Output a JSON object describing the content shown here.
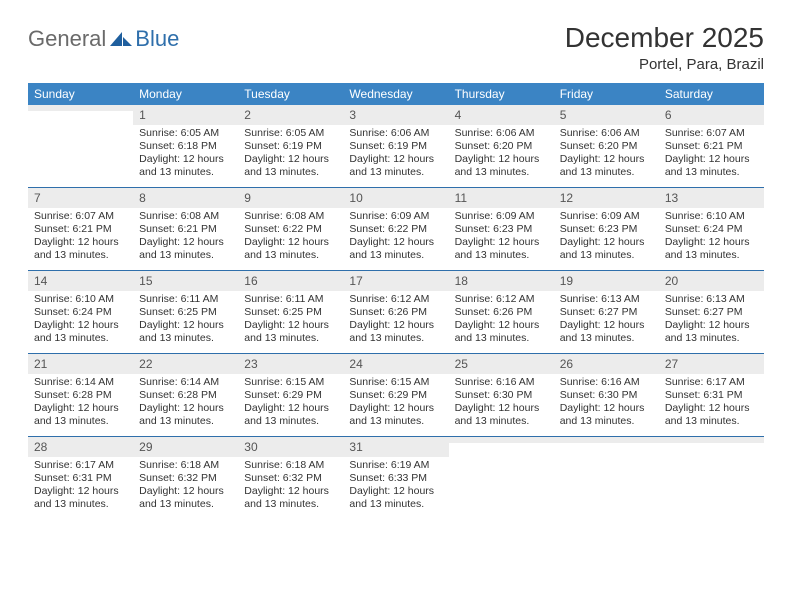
{
  "logo": {
    "part1": "General",
    "part2": "Blue"
  },
  "title": "December 2025",
  "location": "Portel, Para, Brazil",
  "colors": {
    "header_bg": "#3b84c4",
    "border": "#2f6fab",
    "daynum_bg": "#ececec",
    "text": "#333333",
    "logo_gray": "#6a6a6a",
    "logo_blue": "#2f6fab"
  },
  "dow": [
    "Sunday",
    "Monday",
    "Tuesday",
    "Wednesday",
    "Thursday",
    "Friday",
    "Saturday"
  ],
  "weeks": [
    [
      {
        "n": "",
        "sr": "",
        "ss": "",
        "dl": ""
      },
      {
        "n": "1",
        "sr": "Sunrise: 6:05 AM",
        "ss": "Sunset: 6:18 PM",
        "dl": "Daylight: 12 hours and 13 minutes."
      },
      {
        "n": "2",
        "sr": "Sunrise: 6:05 AM",
        "ss": "Sunset: 6:19 PM",
        "dl": "Daylight: 12 hours and 13 minutes."
      },
      {
        "n": "3",
        "sr": "Sunrise: 6:06 AM",
        "ss": "Sunset: 6:19 PM",
        "dl": "Daylight: 12 hours and 13 minutes."
      },
      {
        "n": "4",
        "sr": "Sunrise: 6:06 AM",
        "ss": "Sunset: 6:20 PM",
        "dl": "Daylight: 12 hours and 13 minutes."
      },
      {
        "n": "5",
        "sr": "Sunrise: 6:06 AM",
        "ss": "Sunset: 6:20 PM",
        "dl": "Daylight: 12 hours and 13 minutes."
      },
      {
        "n": "6",
        "sr": "Sunrise: 6:07 AM",
        "ss": "Sunset: 6:21 PM",
        "dl": "Daylight: 12 hours and 13 minutes."
      }
    ],
    [
      {
        "n": "7",
        "sr": "Sunrise: 6:07 AM",
        "ss": "Sunset: 6:21 PM",
        "dl": "Daylight: 12 hours and 13 minutes."
      },
      {
        "n": "8",
        "sr": "Sunrise: 6:08 AM",
        "ss": "Sunset: 6:21 PM",
        "dl": "Daylight: 12 hours and 13 minutes."
      },
      {
        "n": "9",
        "sr": "Sunrise: 6:08 AM",
        "ss": "Sunset: 6:22 PM",
        "dl": "Daylight: 12 hours and 13 minutes."
      },
      {
        "n": "10",
        "sr": "Sunrise: 6:09 AM",
        "ss": "Sunset: 6:22 PM",
        "dl": "Daylight: 12 hours and 13 minutes."
      },
      {
        "n": "11",
        "sr": "Sunrise: 6:09 AM",
        "ss": "Sunset: 6:23 PM",
        "dl": "Daylight: 12 hours and 13 minutes."
      },
      {
        "n": "12",
        "sr": "Sunrise: 6:09 AM",
        "ss": "Sunset: 6:23 PM",
        "dl": "Daylight: 12 hours and 13 minutes."
      },
      {
        "n": "13",
        "sr": "Sunrise: 6:10 AM",
        "ss": "Sunset: 6:24 PM",
        "dl": "Daylight: 12 hours and 13 minutes."
      }
    ],
    [
      {
        "n": "14",
        "sr": "Sunrise: 6:10 AM",
        "ss": "Sunset: 6:24 PM",
        "dl": "Daylight: 12 hours and 13 minutes."
      },
      {
        "n": "15",
        "sr": "Sunrise: 6:11 AM",
        "ss": "Sunset: 6:25 PM",
        "dl": "Daylight: 12 hours and 13 minutes."
      },
      {
        "n": "16",
        "sr": "Sunrise: 6:11 AM",
        "ss": "Sunset: 6:25 PM",
        "dl": "Daylight: 12 hours and 13 minutes."
      },
      {
        "n": "17",
        "sr": "Sunrise: 6:12 AM",
        "ss": "Sunset: 6:26 PM",
        "dl": "Daylight: 12 hours and 13 minutes."
      },
      {
        "n": "18",
        "sr": "Sunrise: 6:12 AM",
        "ss": "Sunset: 6:26 PM",
        "dl": "Daylight: 12 hours and 13 minutes."
      },
      {
        "n": "19",
        "sr": "Sunrise: 6:13 AM",
        "ss": "Sunset: 6:27 PM",
        "dl": "Daylight: 12 hours and 13 minutes."
      },
      {
        "n": "20",
        "sr": "Sunrise: 6:13 AM",
        "ss": "Sunset: 6:27 PM",
        "dl": "Daylight: 12 hours and 13 minutes."
      }
    ],
    [
      {
        "n": "21",
        "sr": "Sunrise: 6:14 AM",
        "ss": "Sunset: 6:28 PM",
        "dl": "Daylight: 12 hours and 13 minutes."
      },
      {
        "n": "22",
        "sr": "Sunrise: 6:14 AM",
        "ss": "Sunset: 6:28 PM",
        "dl": "Daylight: 12 hours and 13 minutes."
      },
      {
        "n": "23",
        "sr": "Sunrise: 6:15 AM",
        "ss": "Sunset: 6:29 PM",
        "dl": "Daylight: 12 hours and 13 minutes."
      },
      {
        "n": "24",
        "sr": "Sunrise: 6:15 AM",
        "ss": "Sunset: 6:29 PM",
        "dl": "Daylight: 12 hours and 13 minutes."
      },
      {
        "n": "25",
        "sr": "Sunrise: 6:16 AM",
        "ss": "Sunset: 6:30 PM",
        "dl": "Daylight: 12 hours and 13 minutes."
      },
      {
        "n": "26",
        "sr": "Sunrise: 6:16 AM",
        "ss": "Sunset: 6:30 PM",
        "dl": "Daylight: 12 hours and 13 minutes."
      },
      {
        "n": "27",
        "sr": "Sunrise: 6:17 AM",
        "ss": "Sunset: 6:31 PM",
        "dl": "Daylight: 12 hours and 13 minutes."
      }
    ],
    [
      {
        "n": "28",
        "sr": "Sunrise: 6:17 AM",
        "ss": "Sunset: 6:31 PM",
        "dl": "Daylight: 12 hours and 13 minutes."
      },
      {
        "n": "29",
        "sr": "Sunrise: 6:18 AM",
        "ss": "Sunset: 6:32 PM",
        "dl": "Daylight: 12 hours and 13 minutes."
      },
      {
        "n": "30",
        "sr": "Sunrise: 6:18 AM",
        "ss": "Sunset: 6:32 PM",
        "dl": "Daylight: 12 hours and 13 minutes."
      },
      {
        "n": "31",
        "sr": "Sunrise: 6:19 AM",
        "ss": "Sunset: 6:33 PM",
        "dl": "Daylight: 12 hours and 13 minutes."
      },
      {
        "n": "",
        "sr": "",
        "ss": "",
        "dl": ""
      },
      {
        "n": "",
        "sr": "",
        "ss": "",
        "dl": ""
      },
      {
        "n": "",
        "sr": "",
        "ss": "",
        "dl": ""
      }
    ]
  ]
}
